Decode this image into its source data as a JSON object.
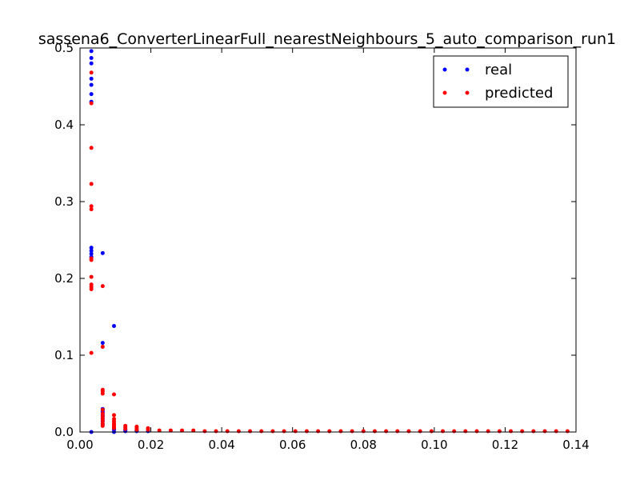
{
  "chart_data": {
    "type": "scatter",
    "title": "sassena6_ConverterLinearFull_nearestNeighbours_5_auto_comparison_run1",
    "xlabel": "",
    "ylabel": "",
    "xlim": [
      0.0,
      0.14
    ],
    "ylim": [
      0.0,
      0.5
    ],
    "xticks": [
      "0.00",
      "0.02",
      "0.04",
      "0.06",
      "0.08",
      "0.10",
      "0.12",
      "0.14"
    ],
    "yticks": [
      "0.0",
      "0.1",
      "0.2",
      "0.3",
      "0.4",
      "0.5"
    ],
    "grid": false,
    "legend_position": "top-right",
    "series": [
      {
        "name": "real",
        "color": "#0000ff",
        "points": [
          [
            0.0032,
            0.496
          ],
          [
            0.0032,
            0.487
          ],
          [
            0.0032,
            0.48
          ],
          [
            0.0032,
            0.46
          ],
          [
            0.0032,
            0.452
          ],
          [
            0.0032,
            0.44
          ],
          [
            0.0032,
            0.43
          ],
          [
            0.0032,
            0.24
          ],
          [
            0.0032,
            0.236
          ],
          [
            0.0032,
            0.232
          ],
          [
            0.0032,
            0.228
          ],
          [
            0.0032,
            0.0
          ],
          [
            0.0064,
            0.233
          ],
          [
            0.0064,
            0.116
          ],
          [
            0.0064,
            0.03
          ],
          [
            0.0064,
            0.027
          ],
          [
            0.0064,
            0.025
          ],
          [
            0.0064,
            0.022
          ],
          [
            0.0064,
            0.02
          ],
          [
            0.0064,
            0.017
          ],
          [
            0.0064,
            0.014
          ],
          [
            0.0064,
            0.01
          ],
          [
            0.0096,
            0.138
          ],
          [
            0.0096,
            0.005
          ],
          [
            0.0096,
            0.003
          ],
          [
            0.0096,
            0.0
          ],
          [
            0.0128,
            0.003
          ],
          [
            0.0128,
            0.001
          ],
          [
            0.016,
            0.002
          ],
          [
            0.016,
            0.001
          ],
          [
            0.0192,
            0.001
          ]
        ]
      },
      {
        "name": "predicted",
        "color": "#ff0000",
        "points": [
          [
            0.0032,
            0.468
          ],
          [
            0.0032,
            0.428
          ],
          [
            0.0032,
            0.37
          ],
          [
            0.0032,
            0.323
          ],
          [
            0.0032,
            0.294
          ],
          [
            0.0032,
            0.29
          ],
          [
            0.0032,
            0.226
          ],
          [
            0.0032,
            0.224
          ],
          [
            0.0032,
            0.202
          ],
          [
            0.0032,
            0.192
          ],
          [
            0.0032,
            0.189
          ],
          [
            0.0032,
            0.186
          ],
          [
            0.0032,
            0.103
          ],
          [
            0.0064,
            0.19
          ],
          [
            0.0064,
            0.111
          ],
          [
            0.0064,
            0.055
          ],
          [
            0.0064,
            0.053
          ],
          [
            0.0064,
            0.05
          ],
          [
            0.0064,
            0.029
          ],
          [
            0.0064,
            0.024
          ],
          [
            0.0064,
            0.021
          ],
          [
            0.0064,
            0.018
          ],
          [
            0.0064,
            0.015
          ],
          [
            0.0064,
            0.011
          ],
          [
            0.0064,
            0.008
          ],
          [
            0.0096,
            0.049
          ],
          [
            0.0096,
            0.022
          ],
          [
            0.0096,
            0.017
          ],
          [
            0.0096,
            0.014
          ],
          [
            0.0096,
            0.011
          ],
          [
            0.0096,
            0.009
          ],
          [
            0.0096,
            0.007
          ],
          [
            0.0096,
            0.005
          ],
          [
            0.0128,
            0.008
          ],
          [
            0.0128,
            0.006
          ],
          [
            0.0128,
            0.004
          ],
          [
            0.016,
            0.007
          ],
          [
            0.016,
            0.005
          ],
          [
            0.016,
            0.003
          ],
          [
            0.0192,
            0.005
          ],
          [
            0.0192,
            0.003
          ],
          [
            0.0224,
            0.002
          ],
          [
            0.0256,
            0.002
          ],
          [
            0.0288,
            0.002
          ],
          [
            0.032,
            0.002
          ],
          [
            0.0352,
            0.001
          ],
          [
            0.0384,
            0.001
          ],
          [
            0.0416,
            0.001
          ],
          [
            0.0448,
            0.001
          ],
          [
            0.048,
            0.001
          ],
          [
            0.0512,
            0.001
          ],
          [
            0.0544,
            0.001
          ],
          [
            0.0576,
            0.001
          ],
          [
            0.0608,
            0.001
          ],
          [
            0.064,
            0.001
          ],
          [
            0.0672,
            0.001
          ],
          [
            0.0704,
            0.001
          ],
          [
            0.0736,
            0.001
          ],
          [
            0.0768,
            0.001
          ],
          [
            0.08,
            0.001
          ],
          [
            0.0832,
            0.001
          ],
          [
            0.0864,
            0.001
          ],
          [
            0.0896,
            0.001
          ],
          [
            0.0928,
            0.001
          ],
          [
            0.096,
            0.001
          ],
          [
            0.0992,
            0.001
          ],
          [
            0.1024,
            0.001
          ],
          [
            0.1056,
            0.001
          ],
          [
            0.1088,
            0.001
          ],
          [
            0.112,
            0.001
          ],
          [
            0.1152,
            0.001
          ],
          [
            0.1184,
            0.001
          ],
          [
            0.1216,
            0.001
          ],
          [
            0.1248,
            0.001
          ],
          [
            0.128,
            0.001
          ],
          [
            0.1312,
            0.001
          ],
          [
            0.1344,
            0.001
          ],
          [
            0.1376,
            0.001
          ]
        ]
      }
    ]
  }
}
